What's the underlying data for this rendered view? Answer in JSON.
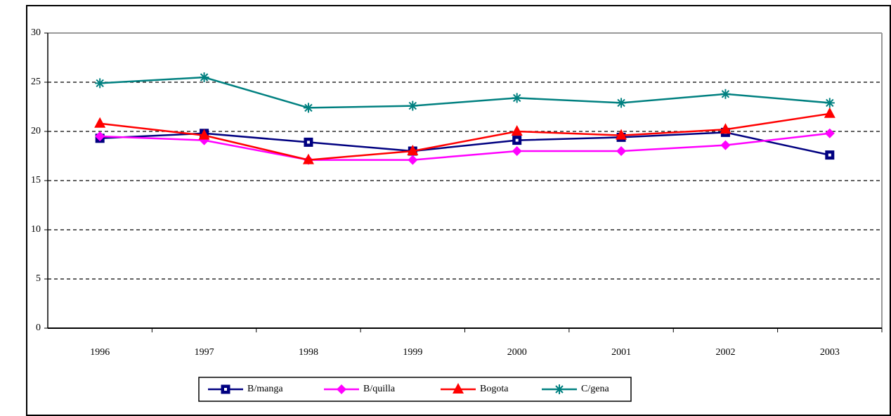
{
  "chart_data": {
    "type": "line",
    "categories": [
      "1996",
      "1997",
      "1998",
      "1999",
      "2000",
      "2001",
      "2002",
      "2003"
    ],
    "series": [
      {
        "name": "B/manga",
        "color": "#000080",
        "marker": "square",
        "values": [
          19.3,
          19.8,
          18.9,
          18.0,
          19.1,
          19.4,
          19.9,
          17.6
        ]
      },
      {
        "name": "B/quilla",
        "color": "#ff00ff",
        "marker": "diamond",
        "values": [
          19.5,
          19.1,
          17.1,
          17.1,
          18.0,
          18.0,
          18.6,
          19.8
        ]
      },
      {
        "name": "Bogota",
        "color": "#ff0000",
        "marker": "triangle",
        "values": [
          20.8,
          19.6,
          17.1,
          18.0,
          20.0,
          19.6,
          20.2,
          21.8
        ]
      },
      {
        "name": "C/gena",
        "color": "#008080",
        "marker": "asterisk",
        "values": [
          24.9,
          25.5,
          22.4,
          22.6,
          23.4,
          22.9,
          23.8,
          22.9
        ]
      }
    ],
    "ylim": [
      0,
      30
    ],
    "yticks": [
      0,
      5,
      10,
      15,
      20,
      25,
      30
    ],
    "grid": true,
    "legend": "bottom"
  }
}
